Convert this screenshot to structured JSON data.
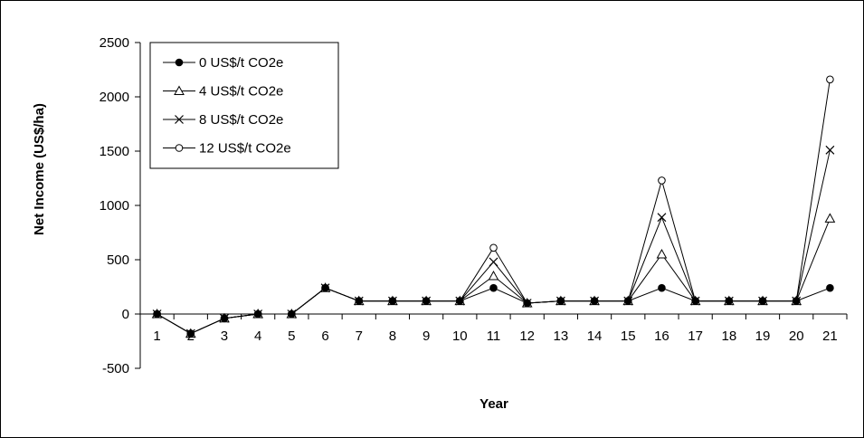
{
  "chart_data": {
    "type": "line",
    "title": "",
    "xlabel": "Year",
    "ylabel": "Net Income (US$/ha)",
    "categories": [
      "1",
      "2",
      "3",
      "4",
      "5",
      "6",
      "7",
      "8",
      "9",
      "10",
      "11",
      "12",
      "13",
      "14",
      "15",
      "16",
      "17",
      "18",
      "19",
      "20",
      "21"
    ],
    "ylim": [
      -500,
      2500
    ],
    "yticks": [
      -500,
      0,
      500,
      1000,
      1500,
      2000,
      2500
    ],
    "grid": false,
    "legend_position": "top-left",
    "series": [
      {
        "name": "0 US$/t CO2e",
        "marker": "filled-circle",
        "values": [
          0,
          -180,
          -40,
          0,
          0,
          240,
          120,
          120,
          120,
          120,
          240,
          100,
          120,
          120,
          120,
          240,
          120,
          120,
          120,
          120,
          240
        ]
      },
      {
        "name": "4 US$/t CO2e",
        "marker": "triangle",
        "values": [
          0,
          -180,
          -40,
          0,
          0,
          240,
          120,
          120,
          120,
          120,
          350,
          100,
          120,
          120,
          120,
          550,
          120,
          120,
          120,
          120,
          880
        ]
      },
      {
        "name": "8 US$/t CO2e",
        "marker": "x",
        "values": [
          0,
          -180,
          -40,
          0,
          0,
          240,
          120,
          120,
          120,
          120,
          480,
          100,
          120,
          120,
          120,
          890,
          120,
          120,
          120,
          120,
          1510
        ]
      },
      {
        "name": "12 US$/t CO2e",
        "marker": "open-circle",
        "values": [
          0,
          -180,
          -40,
          0,
          0,
          240,
          120,
          120,
          120,
          120,
          610,
          100,
          120,
          120,
          120,
          1230,
          120,
          120,
          120,
          120,
          2160
        ]
      }
    ]
  }
}
